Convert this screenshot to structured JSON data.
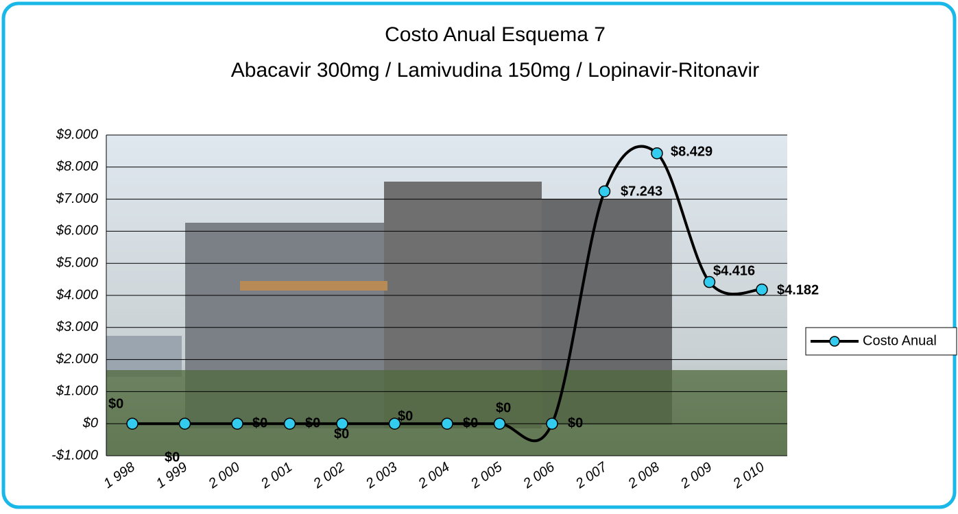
{
  "chart_data": {
    "type": "line",
    "title": "Costo Anual Esquema 7",
    "subtitle": "Abacavir 300mg / Lamivudina 150mg / Lopinavir-Ritonavir",
    "categories": [
      "1 998",
      "1 999",
      "2 000",
      "2 001",
      "2 002",
      "2 003",
      "2 004",
      "2 005",
      "2 006",
      "2 007",
      "2 008",
      "2 009",
      "2 010"
    ],
    "series": [
      {
        "name": "Costo Anual",
        "color": "#000000",
        "marker_color": "#33ccee",
        "values": [
          0,
          0,
          0,
          0,
          0,
          0,
          0,
          0,
          0,
          7243,
          8429,
          4416,
          4182
        ],
        "value_labels": [
          "$0",
          "$0",
          "$0",
          "$0",
          "$0",
          "$0",
          "$0",
          "$0",
          "$0",
          "$7.243",
          "$8.429",
          "$4.416",
          "$4.182"
        ]
      }
    ],
    "ylim": [
      -1000,
      9000
    ],
    "yticks": [
      {
        "value": -1000,
        "label": "-$1.000"
      },
      {
        "value": 0,
        "label": "$0"
      },
      {
        "value": 1000,
        "label": "$1.000"
      },
      {
        "value": 2000,
        "label": "$2.000"
      },
      {
        "value": 3000,
        "label": "$3.000"
      },
      {
        "value": 4000,
        "label": "$4.000"
      },
      {
        "value": 5000,
        "label": "$5.000"
      },
      {
        "value": 6000,
        "label": "$6.000"
      },
      {
        "value": 7000,
        "label": "$7.000"
      },
      {
        "value": 8000,
        "label": "$8.000"
      },
      {
        "value": 9000,
        "label": "$9.000"
      }
    ],
    "grid": true,
    "legend": "right"
  }
}
